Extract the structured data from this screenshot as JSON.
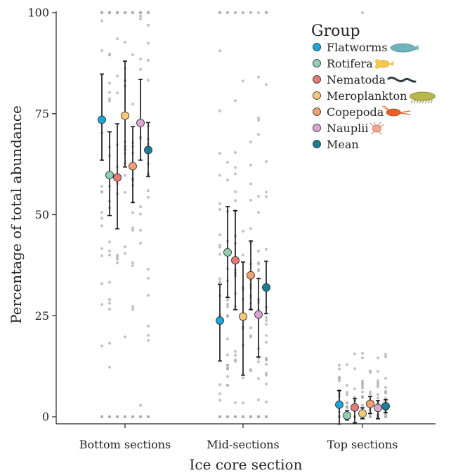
{
  "chart_data": {
    "type": "scatter",
    "xlabel": "Ice core section",
    "ylabel": "Percentage of total abundance",
    "ylim": [
      0,
      100
    ],
    "yticks": [
      0,
      25,
      50,
      75,
      100
    ],
    "categories": [
      "Bottom sections",
      "Mid-sections",
      "Top sections"
    ],
    "legend": {
      "title": "Group",
      "placement": "top-right"
    },
    "grid": false,
    "series": [
      {
        "name": "Flatworms",
        "color": "#1aa6d6",
        "icon": "flatworm-icon",
        "means": [
          73.5,
          23.8,
          3.0
        ],
        "ci_low": [
          63.5,
          13.8,
          -1.8
        ],
        "ci_high": [
          84.8,
          32.8,
          6.5
        ]
      },
      {
        "name": "Rotifera",
        "color": "#8fcfb0",
        "icon": "rotifer-icon",
        "means": [
          59.8,
          40.7,
          0.3
        ],
        "ci_low": [
          49.8,
          29.5,
          -0.8
        ],
        "ci_high": [
          70.5,
          52.0,
          1.5
        ]
      },
      {
        "name": "Nematoda",
        "color": "#e57a7a",
        "icon": "nematode-icon",
        "means": [
          59.2,
          38.7,
          2.3
        ],
        "ci_low": [
          46.5,
          26.5,
          -1.5
        ],
        "ci_high": [
          72.5,
          51.0,
          4.5
        ]
      },
      {
        "name": "Meroplankton",
        "color": "#f7c87a",
        "icon": "meroplankton-icon",
        "means": [
          74.5,
          24.8,
          0.8
        ],
        "ci_low": [
          61.8,
          10.3,
          -0.5
        ],
        "ci_high": [
          88.0,
          38.3,
          2.2
        ]
      },
      {
        "name": "Copepoda",
        "color": "#f2a071",
        "icon": "copepod-icon",
        "means": [
          62.0,
          35.0,
          3.2
        ],
        "ci_low": [
          53.0,
          26.5,
          0.8
        ],
        "ci_high": [
          71.8,
          43.5,
          5.0
        ]
      },
      {
        "name": "Nauplii",
        "color": "#d9a6d2",
        "icon": "nauplius-icon",
        "means": [
          72.7,
          25.3,
          2.2
        ],
        "ci_low": [
          63.5,
          14.8,
          -0.5
        ],
        "ci_high": [
          83.5,
          34.2,
          4.0
        ]
      },
      {
        "name": "Mean",
        "color": "#1a7f94",
        "icon": "",
        "means": [
          66.0,
          32.0,
          2.6
        ],
        "ci_low": [
          59.5,
          25.5,
          1.0
        ],
        "ci_high": [
          72.8,
          38.5,
          4.2
        ]
      }
    ]
  }
}
